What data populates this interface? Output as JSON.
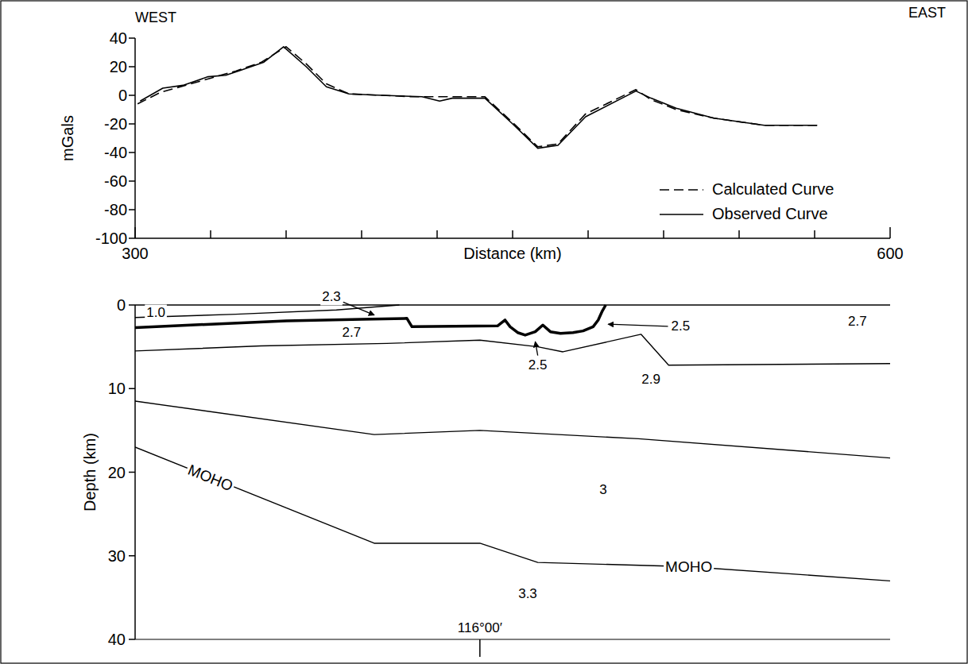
{
  "chart_data": [
    {
      "type": "line",
      "annotations": [
        "WEST",
        "EAST"
      ],
      "xlabel": "Distance (km)",
      "ylabel": "mGals",
      "xlim": [
        300,
        600
      ],
      "ylim": [
        -100,
        40
      ],
      "xticks": [
        300,
        600
      ],
      "x_minor_ticks": [
        330,
        360,
        390,
        420,
        450,
        480,
        510,
        540,
        570
      ],
      "yticks": [
        -100,
        -80,
        -60,
        -40,
        -20,
        0,
        20,
        40
      ],
      "legend": "lower right",
      "series": [
        {
          "name": "Calculated Curve",
          "line_style": "dashed",
          "color": "#000000",
          "x": [
            301,
            310,
            320,
            330,
            340,
            350,
            360,
            368,
            376,
            385,
            398,
            410,
            425,
            439,
            450,
            460,
            468,
            479,
            499,
            505,
            515,
            530,
            550,
            571
          ],
          "values": [
            -6,
            2,
            7,
            12,
            17,
            23,
            34,
            22,
            8,
            1,
            0,
            -1,
            -1,
            -1,
            -19,
            -36,
            -34,
            -13,
            4,
            -3,
            -10,
            -16,
            -21,
            -21
          ]
        },
        {
          "name": "Observed Curve",
          "line_style": "solid",
          "color": "#000000",
          "x": [
            302,
            311,
            319,
            329,
            336,
            341,
            351,
            359,
            368,
            376,
            385,
            398,
            414,
            421,
            426,
            439,
            450,
            460,
            468,
            479,
            499,
            505,
            515,
            530,
            550,
            571
          ],
          "values": [
            -4,
            5,
            7,
            13,
            14,
            17,
            23,
            34,
            20,
            6,
            1,
            0,
            -1,
            -4,
            -2,
            -2,
            -20,
            -37,
            -35,
            -15,
            3,
            -2,
            -9,
            -16,
            -21,
            -21
          ]
        }
      ]
    },
    {
      "type": "cross_section",
      "ylabel": "Depth (km)",
      "xlim": [
        300,
        600
      ],
      "ylim": [
        0,
        40
      ],
      "xticks": [
        {
          "value": 437,
          "label": "116°00′"
        }
      ],
      "yticks": [
        0,
        10,
        20,
        30,
        40
      ],
      "series": [
        {
          "line_style": "thin",
          "x": [
            300,
            600
          ],
          "values": [
            0,
            0
          ]
        },
        {
          "line_style": "thin",
          "x": [
            300,
            340,
            380,
            405
          ],
          "values": [
            1.5,
            1.1,
            0.6,
            0
          ]
        },
        {
          "line_style": "thick",
          "x": [
            300,
            330,
            360,
            390,
            408,
            410,
            444,
            447,
            449,
            452,
            455,
            459,
            462,
            465,
            469,
            474,
            478,
            482,
            484,
            485.5,
            487
          ],
          "values": [
            2.7,
            2.3,
            1.9,
            1.7,
            1.6,
            2.6,
            2.5,
            1.8,
            2.6,
            3.3,
            3.6,
            3.2,
            2.4,
            3.2,
            3.4,
            3.3,
            3.1,
            2.6,
            1.8,
            0.8,
            0
          ]
        },
        {
          "line_style": "thin",
          "x": [
            300,
            350,
            400,
            437,
            460,
            470,
            501,
            512,
            600
          ],
          "values": [
            5.5,
            4.9,
            4.6,
            4.2,
            5.0,
            5.6,
            3.5,
            7.2,
            7.0
          ]
        },
        {
          "line_style": "thin",
          "x": [
            300,
            395,
            437,
            500,
            600
          ],
          "values": [
            11.5,
            15.5,
            15,
            16,
            18.3
          ]
        },
        {
          "name": "MOHO",
          "line_style": "thin",
          "x": [
            300,
            395,
            437,
            460,
            520,
            600
          ],
          "values": [
            17,
            28.5,
            28.5,
            30.8,
            31.3,
            33
          ]
        }
      ],
      "density_labels": [
        {
          "value": 1,
          "label": "1.0"
        },
        2.3,
        2.7,
        2.5,
        2.5,
        2.7,
        2.9,
        3.0,
        3.3
      ]
    }
  ]
}
